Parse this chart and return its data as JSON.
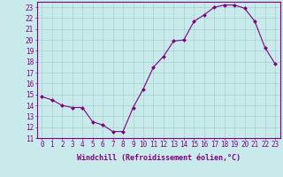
{
  "x": [
    0,
    1,
    2,
    3,
    4,
    5,
    6,
    7,
    8,
    9,
    10,
    11,
    12,
    13,
    14,
    15,
    16,
    17,
    18,
    19,
    20,
    21,
    22,
    23
  ],
  "y": [
    14.8,
    14.5,
    14.0,
    13.8,
    13.8,
    12.5,
    12.2,
    11.6,
    11.6,
    13.8,
    15.5,
    17.5,
    18.5,
    19.9,
    20.0,
    21.7,
    22.3,
    23.0,
    23.2,
    23.2,
    22.9,
    21.7,
    19.3,
    17.8
  ],
  "line_color": "#800080",
  "marker_color": "#800080",
  "bg_color": "#c8eaea",
  "grid_color": "#a8d0d0",
  "axis_color": "#800080",
  "tick_color": "#800080",
  "label_color": "#800080",
  "xlabel": "Windchill (Refroidissement éolien,°C)",
  "ylim": [
    11,
    23.5
  ],
  "xlim": [
    -0.5,
    23.5
  ],
  "yticks": [
    11,
    12,
    13,
    14,
    15,
    16,
    17,
    18,
    19,
    20,
    21,
    22,
    23
  ],
  "xticks": [
    0,
    1,
    2,
    3,
    4,
    5,
    6,
    7,
    8,
    9,
    10,
    11,
    12,
    13,
    14,
    15,
    16,
    17,
    18,
    19,
    20,
    21,
    22,
    23
  ],
  "axis_fontsize": 5.5,
  "label_fontsize": 6.0
}
